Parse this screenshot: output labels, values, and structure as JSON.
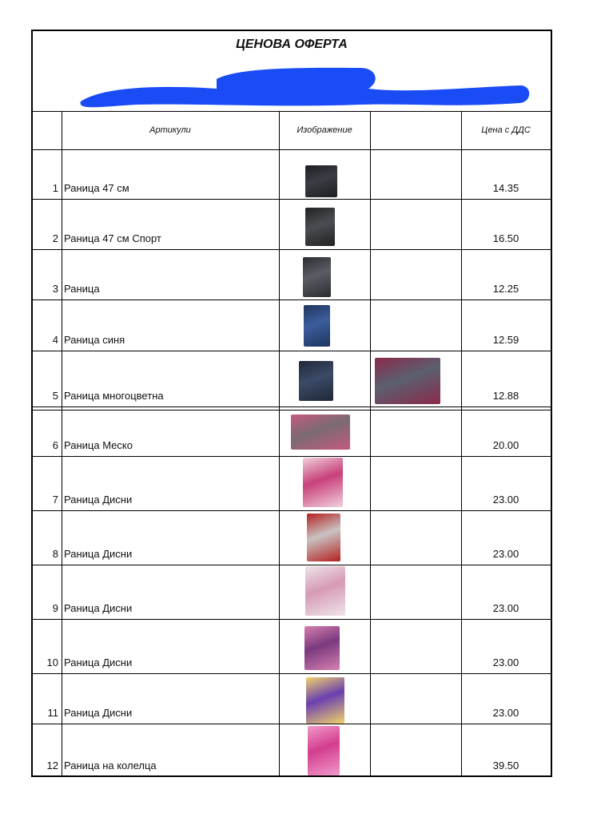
{
  "document": {
    "title": "ЦЕНОВА  ОФЕРТА",
    "redaction_color": "#1a4cf5",
    "headers": {
      "number": "",
      "article": "Артикули",
      "image": "Изображение",
      "extra": "",
      "price": "Цена с ДДС"
    },
    "rows": [
      {
        "n": "1",
        "article": "Раница 47 см",
        "price": "14.35",
        "images": [
          "backpack-black"
        ]
      },
      {
        "n": "2",
        "article": "Раница 47 см Спорт",
        "price": "16.50",
        "images": [
          "backpack-sport"
        ]
      },
      {
        "n": "3",
        "article": "Раница",
        "price": "12.25",
        "images": [
          "backpack-gray"
        ]
      },
      {
        "n": "4",
        "article": "Раница синя",
        "price": "12.59",
        "images": [
          "backpack-blue"
        ]
      },
      {
        "n": "5",
        "article": "Раница многоцветна",
        "price": "12.88",
        "images": [
          "backpack-multicolor",
          "backpacks-group"
        ]
      },
      {
        "n": "6",
        "article": "Раница Меско",
        "price": "20.00",
        "images": [
          "backpacks-mesko"
        ]
      },
      {
        "n": "7",
        "article": "Раница Дисни",
        "price": "23.00",
        "images": [
          "backpack-disney-pink"
        ]
      },
      {
        "n": "8",
        "article": "Раница Дисни",
        "price": "23.00",
        "images": [
          "backpack-disney-cars"
        ]
      },
      {
        "n": "9",
        "article": "Раница Дисни",
        "price": "23.00",
        "images": [
          "backpack-disney-white"
        ]
      },
      {
        "n": "10",
        "article": "Раница Дисни",
        "price": "23.00",
        "images": [
          "backpack-disney-purple"
        ]
      },
      {
        "n": "11",
        "article": "Раница Дисни",
        "price": "23.00",
        "images": [
          "backpack-disney-barbie"
        ]
      },
      {
        "n": "12",
        "article": "Раница на колелца",
        "price": "39.50",
        "images": [
          "backpack-trolley"
        ]
      }
    ]
  }
}
